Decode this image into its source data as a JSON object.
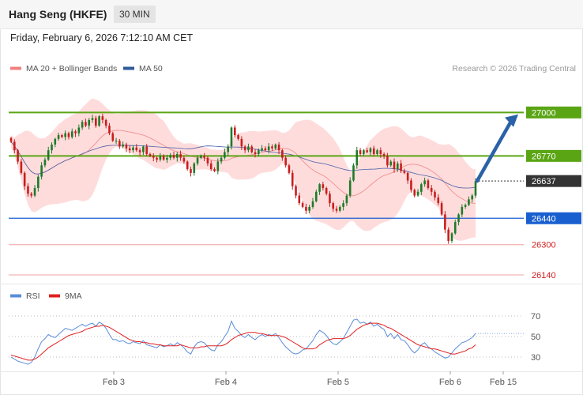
{
  "header": {
    "title": "Hang Seng (HKFE)",
    "timeframe": "30 MIN"
  },
  "subtitle": "Friday, February 6, 2026 7:12:10 AM CET",
  "legend": [
    {
      "label": "MA 20 + Bollinger Bands",
      "color": "#f08080"
    },
    {
      "label": "MA 50",
      "color": "#2e5a99"
    }
  ],
  "credit": "Research © 2026 Trading Central",
  "colors": {
    "up": "#1e7a2a",
    "down": "#c81e1e",
    "support": "#1a5fd0",
    "resistance": "#5aa514",
    "rsi": "#5b8dd8",
    "rsi_ma": "#e02020",
    "band": "#ffd6d6"
  },
  "chart_data": [
    {
      "type": "candlestick",
      "title": "Hang Seng (HKFE) 30 MIN",
      "ylim": [
        26085,
        26975
      ],
      "x_ticks": [
        "Feb 3",
        "Feb 4",
        "Feb 5",
        "Feb 6",
        "Feb 15"
      ],
      "levels": [
        {
          "value": 27000,
          "label": "27000",
          "style": "resistance"
        },
        {
          "value": 26770,
          "label": "26770",
          "style": "resistance"
        },
        {
          "value": 26637,
          "label": "26637",
          "style": "current"
        },
        {
          "value": 26440,
          "label": "26440",
          "style": "support"
        },
        {
          "value": 26300,
          "label": "26300",
          "style": "minor"
        },
        {
          "value": 26140,
          "label": "26140",
          "style": "minor"
        }
      ],
      "forecast": {
        "from": 26637,
        "to": 26990,
        "direction": "up"
      },
      "closes": [
        26845,
        26800,
        26740,
        26680,
        26610,
        26570,
        26560,
        26600,
        26660,
        26720,
        26750,
        26800,
        26830,
        26860,
        26880,
        26870,
        26890,
        26870,
        26900,
        26890,
        26920,
        26950,
        26930,
        26960,
        26970,
        26930,
        26980,
        26960,
        26930,
        26890,
        26850,
        26850,
        26820,
        26830,
        26810,
        26800,
        26815,
        26800,
        26790,
        26820,
        26780,
        26770,
        26760,
        26750,
        26770,
        26750,
        26760,
        26775,
        26760,
        26780,
        26760,
        26740,
        26700,
        26680,
        26730,
        26760,
        26770,
        26760,
        26730,
        26700,
        26690,
        26740,
        26760,
        26790,
        26820,
        26920,
        26880,
        26860,
        26820,
        26800,
        26820,
        26790,
        26780,
        26800,
        26810,
        26800,
        26820,
        26810,
        26830,
        26800,
        26760,
        26720,
        26680,
        26610,
        26560,
        26520,
        26500,
        26480,
        26500,
        26530,
        26580,
        26620,
        26600,
        26570,
        26520,
        26490,
        26480,
        26500,
        26520,
        26560,
        26640,
        26720,
        26800,
        26780,
        26800,
        26790,
        26810,
        26780,
        26800,
        26780,
        26770,
        26720,
        26740,
        26700,
        26730,
        26690,
        26680,
        26640,
        26590,
        26560,
        26580,
        26620,
        26640,
        26600,
        26580,
        26550,
        26520,
        26460,
        26380,
        26320,
        26360,
        26420,
        26460,
        26500,
        26510,
        26540,
        26560,
        26637
      ]
    },
    {
      "type": "line",
      "title": "RSI",
      "ylim": [
        20,
        80
      ],
      "y_ticks": [
        70,
        50,
        30
      ],
      "series": [
        {
          "name": "RSI",
          "values": [
            30,
            28,
            26,
            25,
            24,
            23,
            25,
            30,
            38,
            45,
            48,
            52,
            50,
            49,
            52,
            55,
            58,
            57,
            56,
            58,
            60,
            62,
            60,
            62,
            63,
            60,
            64,
            62,
            58,
            52,
            47,
            47,
            45,
            46,
            44,
            43,
            45,
            44,
            43,
            46,
            42,
            41,
            40,
            39,
            42,
            40,
            41,
            43,
            41,
            44,
            42,
            39,
            35,
            33,
            40,
            44,
            45,
            44,
            40,
            37,
            36,
            42,
            45,
            50,
            55,
            65,
            58,
            55,
            51,
            49,
            52,
            49,
            47,
            50,
            52,
            50,
            52,
            51,
            53,
            49,
            44,
            40,
            37,
            34,
            33,
            34,
            37,
            38,
            42,
            46,
            52,
            56,
            54,
            51,
            46,
            43,
            42,
            45,
            48,
            54,
            60,
            66,
            67,
            63,
            64,
            62,
            64,
            60,
            62,
            59,
            57,
            50,
            53,
            48,
            52,
            47,
            46,
            42,
            37,
            34,
            37,
            42,
            44,
            40,
            38,
            35,
            33,
            31,
            29,
            30,
            34,
            38,
            41,
            44,
            45,
            47,
            49,
            53
          ]
        },
        {
          "name": "9MA",
          "values": [
            32,
            31,
            30,
            29,
            28,
            27,
            27,
            28,
            30,
            33,
            36,
            39,
            41,
            43,
            45,
            47,
            49,
            51,
            52,
            53,
            54,
            55,
            57,
            58,
            59,
            60,
            60,
            61,
            60,
            59,
            57,
            55,
            53,
            51,
            49,
            47,
            46,
            45,
            45,
            44,
            44,
            43,
            43,
            42,
            42,
            41,
            41,
            41,
            41,
            41,
            42,
            41,
            40,
            39,
            39,
            39,
            40,
            40,
            41,
            41,
            41,
            41,
            41,
            42,
            44,
            47,
            49,
            51,
            52,
            53,
            54,
            54,
            54,
            53,
            53,
            52,
            51,
            51,
            51,
            51,
            50,
            49,
            47,
            45,
            43,
            41,
            39,
            38,
            38,
            38,
            39,
            42,
            44,
            46,
            47,
            48,
            48,
            48,
            48,
            49,
            51,
            54,
            57,
            59,
            61,
            62,
            63,
            63,
            63,
            62,
            61,
            59,
            58,
            56,
            54,
            52,
            50,
            48,
            46,
            44,
            42,
            41,
            40,
            39,
            38,
            38,
            37,
            36,
            35,
            34,
            33,
            33,
            34,
            35,
            36,
            38,
            39,
            42
          ]
        }
      ]
    }
  ]
}
